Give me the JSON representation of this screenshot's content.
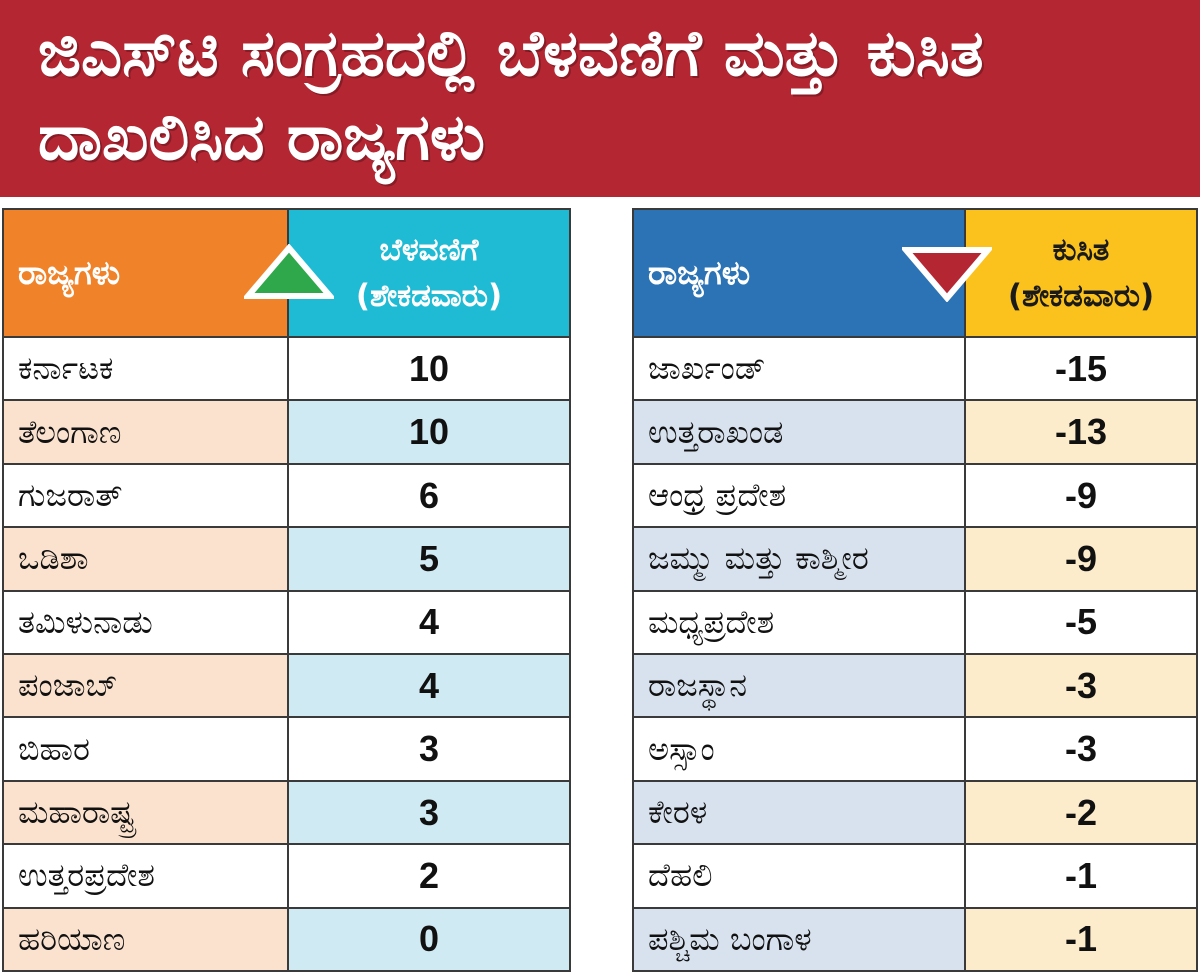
{
  "title": "ಜಿಎಸ್‌ಟಿ ಸಂಗ್ರಹದಲ್ಲಿ ಬೆಳವಣಿಗೆ ಮತ್ತು ಕುಸಿತ ದಾಖಲಿಸಿದ ರಾಜ್ಯಗಳು",
  "colors": {
    "banner": "#b52633",
    "growth_state_header": "#f0832a",
    "growth_value_header": "#1fbbd4",
    "decline_state_header": "#2b73b4",
    "decline_value_header": "#fbc21d",
    "up_triangle": "#2ea84a",
    "down_triangle": "#b52633"
  },
  "growth_table": {
    "header_state": "ರಾಜ್ಯಗಳು",
    "header_value_line1": "ಬೆಳವಣಿಗೆ",
    "header_value_line2": "(ಶೇಕಡವಾರು)",
    "indicator_icon": "up-triangle-icon",
    "rows": [
      {
        "state": "ಕರ್ನಾಟಕ",
        "value": "10"
      },
      {
        "state": "ತೆಲಂಗಾಣ",
        "value": "10"
      },
      {
        "state": "ಗುಜರಾತ್",
        "value": "6"
      },
      {
        "state": "ಒಡಿಶಾ",
        "value": "5"
      },
      {
        "state": "ತಮಿಳುನಾಡು",
        "value": "4"
      },
      {
        "state": "ಪಂಜಾಬ್",
        "value": "4"
      },
      {
        "state": "ಬಿಹಾರ",
        "value": "3"
      },
      {
        "state": "ಮಹಾರಾಷ್ಟ್ರ",
        "value": "3"
      },
      {
        "state": "ಉತ್ತರಪ್ರದೇಶ",
        "value": "2"
      },
      {
        "state": "ಹರಿಯಾಣ",
        "value": "0"
      }
    ]
  },
  "decline_table": {
    "header_state": "ರಾಜ್ಯಗಳು",
    "header_value_line1": "ಕುಸಿತ",
    "header_value_line2": "(ಶೇಕಡವಾರು)",
    "indicator_icon": "down-triangle-icon",
    "rows": [
      {
        "state": "ಜಾರ್ಖಂಡ್",
        "value": "-15"
      },
      {
        "state": "ಉತ್ತರಾಖಂಡ",
        "value": "-13"
      },
      {
        "state": "ಆಂಧ್ರ ಪ್ರದೇಶ",
        "value": "-9"
      },
      {
        "state": "ಜಮ್ಮು ಮತ್ತು ಕಾಶ್ಮೀರ",
        "value": "-9"
      },
      {
        "state": "ಮಧ್ಯಪ್ರದೇಶ",
        "value": "-5"
      },
      {
        "state": "ರಾಜಸ್ಥಾನ",
        "value": "-3"
      },
      {
        "state": "ಅಸ್ಸಾಂ",
        "value": "-3"
      },
      {
        "state": "ಕೇರಳ",
        "value": "-2"
      },
      {
        "state": "ದೆಹಲಿ",
        "value": "-1"
      },
      {
        "state": "ಪಶ್ಚಿಮ ಬಂಗಾಳ",
        "value": "-1"
      }
    ]
  }
}
